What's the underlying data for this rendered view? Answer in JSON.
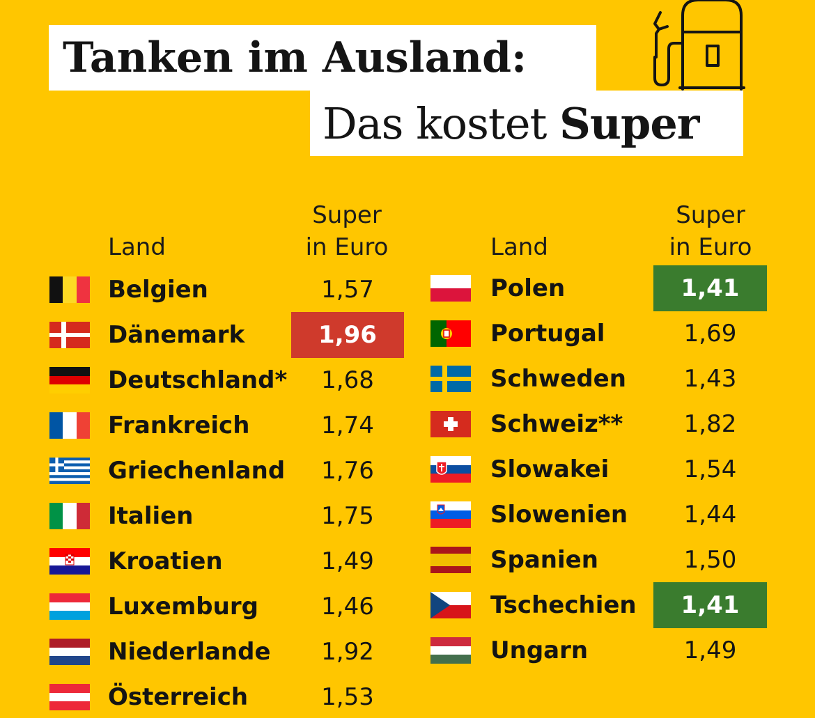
{
  "title": {
    "line1": "Tanken im Ausland:",
    "line2_prefix": "Das kostet ",
    "line2_bold": "Super"
  },
  "icon": "fuel-pump-icon",
  "headers": {
    "land": "Land",
    "price_line1": "Super",
    "price_line2": "in Euro"
  },
  "colors": {
    "background": "#FFC600",
    "highest": "#CF3A2C",
    "lowest": "#3A7C2E"
  },
  "left_column": [
    {
      "flag": "belgium-flag",
      "name": "Belgien",
      "price": "1,57"
    },
    {
      "flag": "denmark-flag",
      "name": "Dänemark",
      "price": "1,96",
      "highlight": "red"
    },
    {
      "flag": "germany-flag",
      "name": "Deutschland*",
      "price": "1,68"
    },
    {
      "flag": "france-flag",
      "name": "Frankreich",
      "price": "1,74"
    },
    {
      "flag": "greece-flag",
      "name": "Griechenland",
      "price": "1,76"
    },
    {
      "flag": "italy-flag",
      "name": "Italien",
      "price": "1,75"
    },
    {
      "flag": "croatia-flag",
      "name": "Kroatien",
      "price": "1,49"
    },
    {
      "flag": "luxembourg-flag",
      "name": "Luxemburg",
      "price": "1,46"
    },
    {
      "flag": "netherlands-flag",
      "name": "Niederlande",
      "price": "1,92"
    },
    {
      "flag": "austria-flag",
      "name": "Österreich",
      "price": "1,53"
    }
  ],
  "right_column": [
    {
      "flag": "poland-flag",
      "name": "Polen",
      "price": "1,41",
      "highlight": "green"
    },
    {
      "flag": "portugal-flag",
      "name": "Portugal",
      "price": "1,69"
    },
    {
      "flag": "sweden-flag",
      "name": "Schweden",
      "price": "1,43"
    },
    {
      "flag": "switzerland-flag",
      "name": "Schweiz**",
      "price": "1,82"
    },
    {
      "flag": "slovakia-flag",
      "name": "Slowakei",
      "price": "1,54"
    },
    {
      "flag": "slovenia-flag",
      "name": "Slowenien",
      "price": "1,44"
    },
    {
      "flag": "spain-flag",
      "name": "Spanien",
      "price": "1,50"
    },
    {
      "flag": "czechia-flag",
      "name": "Tschechien",
      "price": "1,41",
      "highlight": "green"
    },
    {
      "flag": "hungary-flag",
      "name": "Ungarn",
      "price": "1,49"
    }
  ]
}
